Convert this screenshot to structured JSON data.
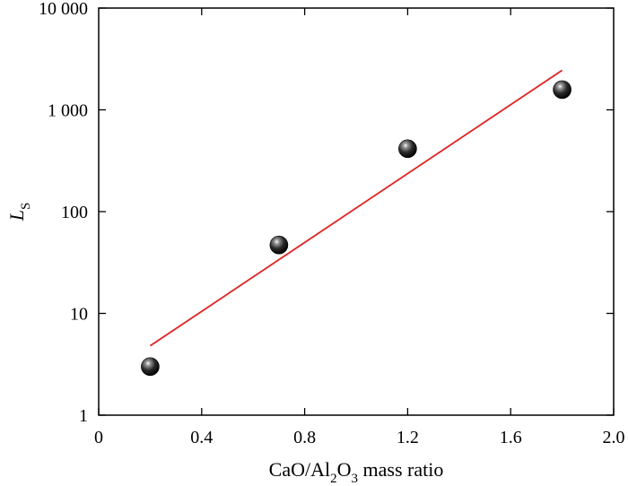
{
  "chart_data": {
    "type": "scatter",
    "xlabel": {
      "main": "CaO/Al",
      "sub1": "2",
      "mid": "O",
      "sub2": "3",
      "tail": " mass ratio"
    },
    "ylabel": {
      "main": "L",
      "sub": "S"
    },
    "x_ticks": [
      "0",
      "0.4",
      "0.8",
      "1.2",
      "1.6",
      "2.0"
    ],
    "x_tick_values": [
      0,
      0.4,
      0.8,
      1.2,
      1.6,
      2.0
    ],
    "y_ticks": [
      "1",
      "10",
      "100",
      "1 000",
      "10 000"
    ],
    "y_tick_values": [
      1,
      10,
      100,
      1000,
      10000
    ],
    "xlim": [
      0,
      2.0
    ],
    "ylim": [
      1,
      10000
    ],
    "y_scale": "log",
    "grid": false,
    "series": [
      {
        "kind": "points",
        "x": [
          0.2,
          0.7,
          1.2,
          1.8
        ],
        "y": [
          3.0,
          47,
          415,
          1580
        ],
        "color": "#1a1a1a"
      },
      {
        "kind": "fit-line",
        "x": [
          0.2,
          1.8
        ],
        "y": [
          4.8,
          2450
        ],
        "color": "#e02020"
      }
    ]
  }
}
